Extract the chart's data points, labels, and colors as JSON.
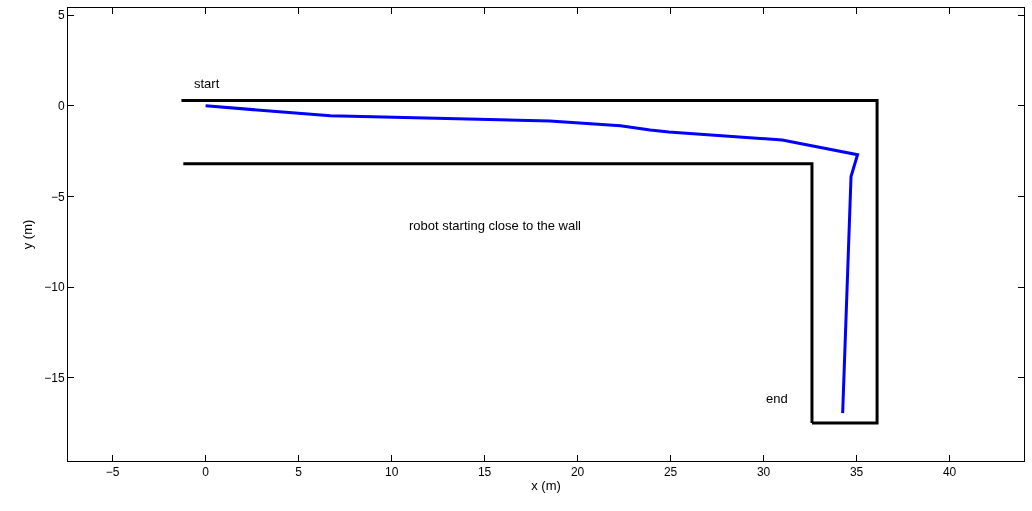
{
  "chart_data": {
    "type": "line",
    "xlabel": "x (m)",
    "ylabel": "y (m)",
    "xlim": [
      -7.4,
      44
    ],
    "ylim": [
      -19.6,
      5.4
    ],
    "xticks": [
      {
        "value": -5,
        "label": "−5"
      },
      0,
      5,
      10,
      15,
      20,
      25,
      30,
      35,
      40
    ],
    "yticks": [
      {
        "value": -15,
        "label": "−15"
      },
      {
        "value": -10,
        "label": "−10"
      },
      {
        "value": -5,
        "label": "−5"
      },
      0,
      5
    ],
    "marker": "none",
    "line_style": "solid",
    "series": [
      {
        "color": "#000000",
        "x": [
          -1.3,
          36.1,
          36.1,
          32.6
        ],
        "values": [
          0.3,
          0.3,
          -17.5,
          -17.5
        ]
      },
      {
        "color": "#000000",
        "x": [
          -1.2,
          32.6,
          32.6
        ],
        "values": [
          -3.2,
          -3.2,
          -17.5
        ]
      },
      {
        "color": "#0000ff",
        "x": [
          0,
          6.7,
          18.5,
          22.3,
          23.9,
          24.9,
          31.0,
          35.05,
          34.7,
          34.25
        ],
        "values": [
          0,
          -0.55,
          -0.83,
          -1.1,
          -1.33,
          -1.44,
          -1.88,
          -2.7,
          -3.9,
          -16.96
        ]
      }
    ],
    "annotations": [
      "start",
      "end",
      "robot starting close to the wall"
    ]
  }
}
